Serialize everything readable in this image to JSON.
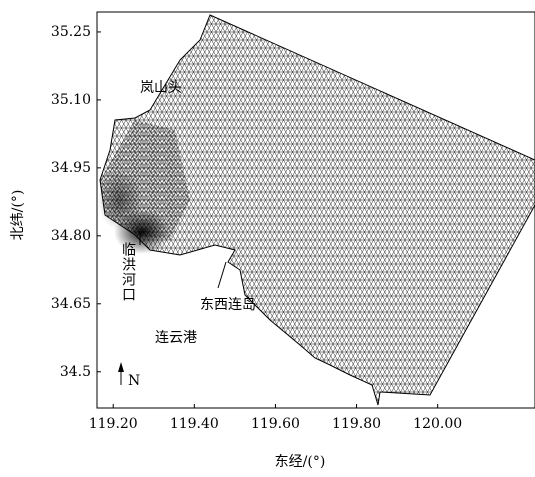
{
  "chart_data": {
    "type": "map",
    "xlabel": "东经/(°)",
    "ylabel": "北纬/(°)",
    "xlim": [
      119.16,
      120.24
    ],
    "ylim": [
      34.42,
      35.294
    ],
    "xticks": [
      {
        "value": 119.2,
        "label": "119.20"
      },
      {
        "value": 119.4,
        "label": "119.40"
      },
      {
        "value": 119.6,
        "label": "119.60"
      },
      {
        "value": 119.8,
        "label": "119.80"
      },
      {
        "value": 120,
        "label": "120.00"
      }
    ],
    "yticks": [
      34.5,
      34.65,
      {
        "value": 34.8,
        "label": "34.80"
      },
      34.95,
      {
        "value": 35.1,
        "label": "35.10"
      },
      35.25
    ],
    "annotations": [
      "岚山头",
      "临洪河口",
      "东西连岛",
      "连云港",
      "N"
    ]
  }
}
